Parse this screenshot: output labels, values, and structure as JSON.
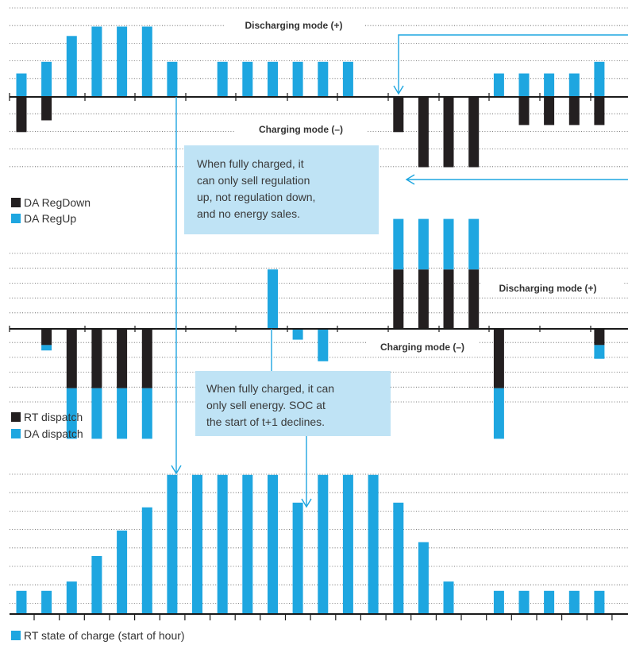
{
  "colors": {
    "blue": "#1ea6e0",
    "black": "#231f20",
    "callout": "#bfe3f5"
  },
  "chart_data": [
    {
      "id": "regulation",
      "type": "bar",
      "mode_labels": {
        "discharging": "Discharging mode (+)",
        "charging": "Charging mode (–)"
      },
      "series": [
        {
          "name": "DA RegDown",
          "color": "#231f20",
          "values": [
            -1.5,
            -1,
            0,
            0,
            0,
            0,
            0,
            0,
            0,
            0,
            0,
            0,
            0,
            0,
            0,
            -1.5,
            -3,
            -3,
            -3,
            0,
            -1.2,
            -1.2,
            -1.2,
            -1.2
          ]
        },
        {
          "name": "DA RegUp",
          "color": "#1ea6e0",
          "values": [
            1,
            1.5,
            2.6,
            3,
            3,
            3,
            1.5,
            0,
            1.5,
            1.5,
            1.5,
            1.5,
            1.5,
            1.5,
            0,
            0,
            0,
            0,
            0,
            1,
            1,
            1,
            1,
            1.5
          ]
        }
      ],
      "legend": [
        "DA RegDown",
        "DA RegUp"
      ],
      "annotation": "When fully charged, it can only sell regulation up, not regulation down, and no energy sales."
    },
    {
      "id": "dispatch",
      "type": "bar",
      "mode_labels": {
        "discharging": "Discharging mode (+)",
        "charging": "Charging mode (–)"
      },
      "series": [
        {
          "name": "RT dispatch",
          "color": "#231f20",
          "values": [
            0,
            -0.3,
            -1.1,
            -1.1,
            -1.1,
            -1.1,
            0,
            0,
            0,
            0,
            0,
            0,
            0,
            0,
            0,
            1.1,
            1.1,
            1.1,
            1.1,
            -1.1,
            0,
            0,
            0,
            -0.3
          ]
        },
        {
          "name": "DA dispatch",
          "color": "#1ea6e0",
          "values": [
            0,
            -0.4,
            -1.1,
            -1.1,
            -1.1,
            -1.1,
            0,
            0,
            0,
            0,
            1.1,
            -0.2,
            -0.6,
            0,
            0,
            1.1,
            1.1,
            1.1,
            1.1,
            -1.1,
            0,
            0,
            0,
            -0.3
          ]
        }
      ],
      "legend": [
        "RT dispatch",
        "DA dispatch"
      ],
      "annotation": "When fully charged, it can only sell energy. SOC at the start of t+1 declines."
    },
    {
      "id": "soc",
      "type": "bar",
      "series": [
        {
          "name": "RT state of charge (start of hour)",
          "color": "#1ea6e0",
          "values": [
            1,
            1,
            1.4,
            2.5,
            3.6,
            4.6,
            6,
            6,
            6,
            6,
            6,
            4.8,
            6,
            6,
            6,
            4.8,
            3.1,
            1.4,
            0,
            1,
            1,
            1,
            1,
            1
          ]
        }
      ],
      "legend": [
        "RT state of charge (start of hour)"
      ]
    }
  ]
}
